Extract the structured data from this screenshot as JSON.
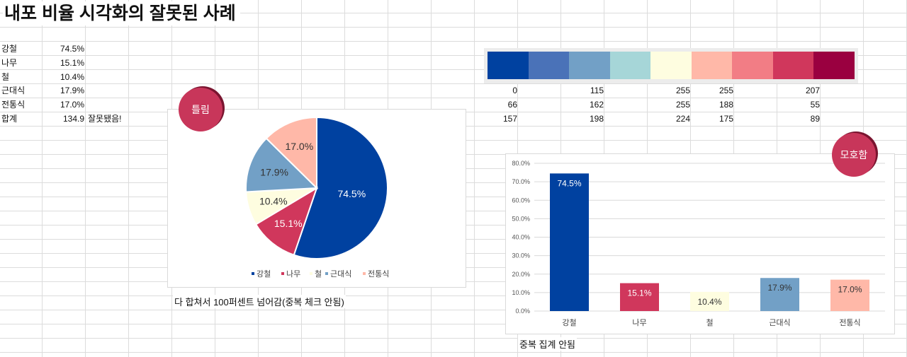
{
  "title": "내포 비율 시각화의 잘못된 사례",
  "table": {
    "rows": [
      {
        "label": "강철",
        "value": "74.5%"
      },
      {
        "label": "나무",
        "value": "15.1%"
      },
      {
        "label": "철",
        "value": "10.4%"
      },
      {
        "label": "근대식",
        "value": "17.9%"
      },
      {
        "label": "전통식",
        "value": "17.0%"
      }
    ],
    "total_label": "합계",
    "total_value": "134.9",
    "total_note": "잘못됐음!"
  },
  "palette": {
    "colors": [
      "#0041a0",
      "#4a72b8",
      "#72a0c6",
      "#a6d6d8",
      "#fefde0",
      "#ffb8a8",
      "#f27d85",
      "#d0375c",
      "#9a0040"
    ],
    "rgb_rows": [
      [
        "0",
        "115",
        "255",
        "255",
        "207"
      ],
      [
        "66",
        "162",
        "255",
        "188",
        "55"
      ],
      [
        "157",
        "198",
        "224",
        "175",
        "89"
      ]
    ]
  },
  "pie": {
    "badge": "틀림",
    "caption": "다 합쳐서 100퍼센트 넘어감(중복 체크 안됨)"
  },
  "bar": {
    "badge": "모호함",
    "caption": "중복 집계 안됨"
  },
  "chart_data": [
    {
      "type": "pie",
      "categories": [
        "강철",
        "나무",
        "철",
        "근대식",
        "전통식"
      ],
      "values": [
        74.5,
        15.1,
        10.4,
        17.9,
        17.0
      ],
      "data_labels": [
        "74.5%",
        "15.1%",
        "10.4%",
        "17.9%",
        "17.0%"
      ],
      "colors": [
        "#0041a0",
        "#d0375c",
        "#fefde0",
        "#72a0c6",
        "#ffb8a8"
      ],
      "legend": "bottom",
      "title": ""
    },
    {
      "type": "bar",
      "categories": [
        "강철",
        "나무",
        "철",
        "근대식",
        "전통식"
      ],
      "values": [
        74.5,
        15.1,
        10.4,
        17.9,
        17.0
      ],
      "data_labels": [
        "74.5%",
        "15.1%",
        "10.4%",
        "17.9%",
        "17.0%"
      ],
      "colors": [
        "#0041a0",
        "#d0375c",
        "#fefde0",
        "#72a0c6",
        "#ffb8a8"
      ],
      "ylim": [
        0,
        80
      ],
      "yticks": [
        "0.0%",
        "10.0%",
        "20.0%",
        "30.0%",
        "40.0%",
        "50.0%",
        "60.0%",
        "70.0%",
        "80.0%"
      ],
      "grid": true,
      "title": "",
      "xlabel": "",
      "ylabel": ""
    }
  ]
}
